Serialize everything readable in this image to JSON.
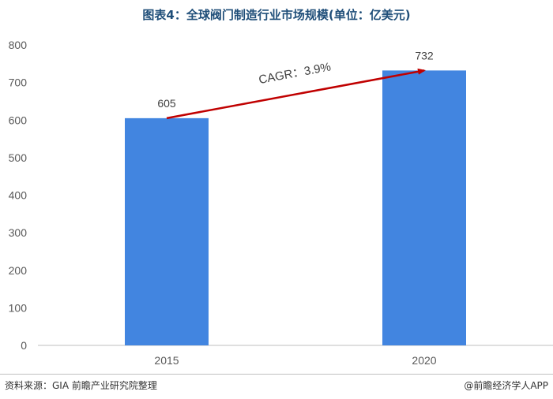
{
  "title": "图表4：全球阀门制造行业市场规模(单位：亿美元)",
  "footer": {
    "source": "资料来源：GIA 前瞻产业研究院整理",
    "brand": "@前瞻经济学人APP"
  },
  "colors": {
    "bar": "#4285e0",
    "arrow": "#c00000",
    "axis_text": "#595959",
    "title": "#1f4e79"
  },
  "chart_data": {
    "type": "bar",
    "title": "图表4：全球阀门制造行业市场规模(单位：亿美元)",
    "categories": [
      "2015",
      "2020"
    ],
    "values": [
      605,
      732
    ],
    "ylim": [
      0,
      800
    ],
    "yticks": [
      0,
      100,
      200,
      300,
      400,
      500,
      600,
      700,
      800
    ],
    "grid": false,
    "annotation": {
      "text": "CAGR：3.9%",
      "from_category": "2015",
      "to_category": "2020"
    }
  }
}
